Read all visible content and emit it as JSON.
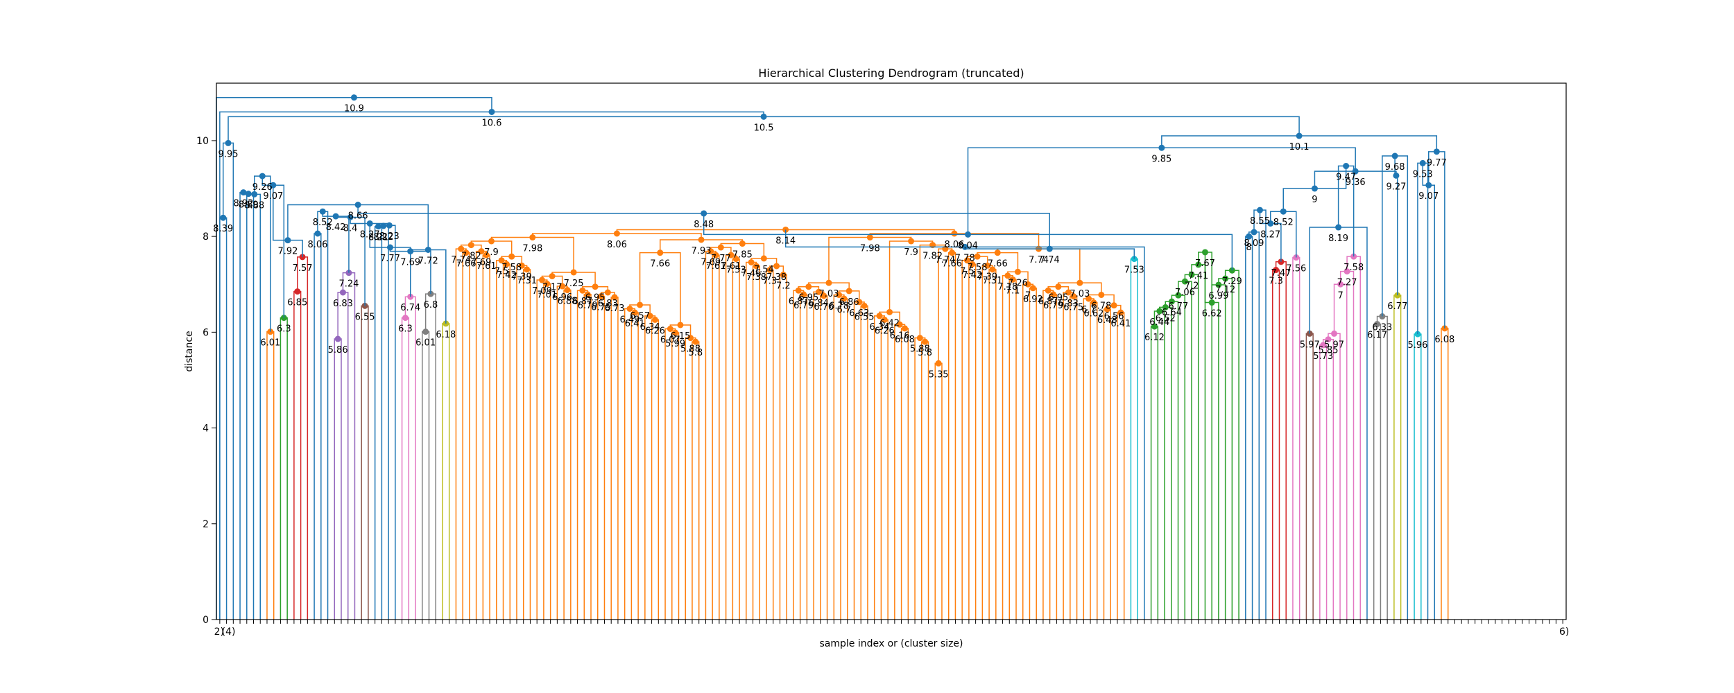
{
  "chart_data": {
    "type": "dendrogram",
    "title": "Hierarchical Clustering Dendrogram (truncated)",
    "xlabel": "sample index or (cluster size)",
    "ylabel": "distance",
    "ylim": [
      0,
      11.2
    ],
    "yticks": [
      "0",
      "2",
      "4",
      "6",
      "8",
      "10"
    ],
    "grid": false,
    "link_color_default": "#1f77b4",
    "cluster_colors": [
      "#ff7f0e",
      "#2ca02c",
      "#d62728",
      "#9467bd",
      "#8c564b",
      "#e377c2",
      "#7f7f7f",
      "#bcbd22",
      "#17becf"
    ],
    "leaf_count": 200,
    "leaf_labels_first": [
      "2)",
      "(4)"
    ],
    "leaf_labels_last": [
      "6)"
    ],
    "root_merges": [
      10.9,
      10.6,
      10.5,
      10.1,
      10.1,
      9.95,
      9.85,
      9.77,
      9.68,
      9.53,
      9.47,
      9.36,
      9.27,
      9.07,
      9.0
    ],
    "blue_merges": [
      8.92,
      8.89,
      8.88,
      8.66,
      8.55,
      8.52,
      8.48,
      8.46,
      8.42,
      8.4,
      8.39,
      8.27,
      8.22,
      8.19,
      8.18,
      8.16,
      8.07,
      8.06,
      8.04,
      8.01,
      7.96,
      7.92,
      7.78,
      7.77,
      7.74,
      7.72,
      7.69
    ],
    "orange_merges": [
      7.66,
      7.61,
      7.61,
      7.53,
      7.5,
      7.42,
      7.38,
      7.31,
      7.3,
      7.2,
      7.1,
      7.01,
      6.92,
      6.88,
      6.81,
      6.79,
      6.79,
      6.76,
      6.75,
      6.73,
      6.7,
      6.62,
      6.55,
      6.48,
      6.41,
      6.32,
      6.26,
      6.14,
      6.08,
      5.99,
      5.91,
      5.8,
      5.64,
      5.35
    ],
    "green_merges": [
      7.67,
      7.41,
      7.2,
      7.06,
      6.77,
      6.64,
      6.52,
      6.44,
      6.12
    ],
    "red_merges": [
      7.57,
      6.85,
      7.3,
      7.47
    ],
    "purple_merges": [
      7.24,
      6.83,
      5.86
    ],
    "brown_merges": [
      6.55,
      5.97,
      6.33
    ],
    "pink_merges": [
      6.74,
      6.3,
      7.58,
      7.27,
      7.0,
      5.97,
      5.85,
      5.73
    ],
    "gray_merges": [
      6.8,
      6.01,
      6.17
    ],
    "olive_merges": [
      6.18,
      6.77
    ],
    "cyan_merges": [
      7.53,
      5.96
    ],
    "single_orange_merges": [
      6.01,
      6.08
    ],
    "single_green_merges": [
      6.3
    ]
  }
}
